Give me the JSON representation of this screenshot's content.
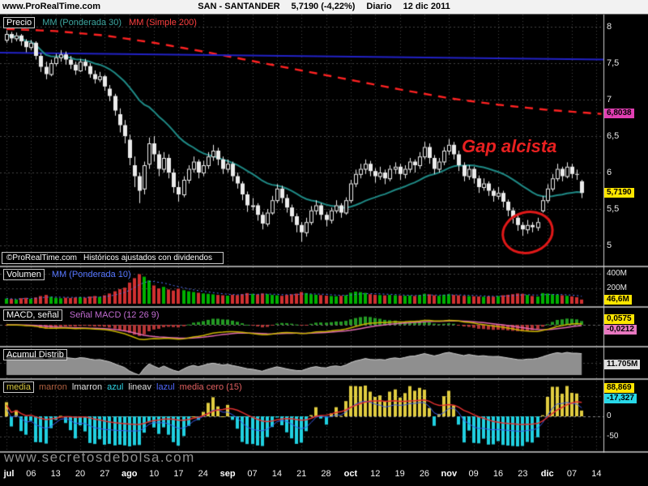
{
  "header": {
    "site": "www.ProRealTime.com",
    "symbol": "SAN - SANTANDER",
    "quote": "5,7190 (-4,22%)",
    "timeframe": "Diario",
    "date": "12 dic 2011"
  },
  "watermark": "www.secretosdebolsa.com",
  "colors": {
    "accent_yellow": "#ffe600",
    "magenta_label": "#e23fb4",
    "cyan_label": "#28d8e8",
    "up_volume_green": "#00b000",
    "down_volume_red": "#d03030",
    "mm30_teal": "#1f8a86",
    "mm200_red": "#ff2222",
    "trendline_blue": "#2222c8",
    "annotation_red": "#e82020"
  },
  "panels": {
    "price": {
      "name": "Precio",
      "ma_fast_label": "MM (Ponderada 30)",
      "ma_slow_label": "MM (Simple 200)",
      "copyright_site": "©ProRealTime.com",
      "copyright_note": "Históricos ajustados con dividendos",
      "annotation": "Gap alcista",
      "y_ticks": [
        {
          "label": "8",
          "value": 8
        },
        {
          "label": "7,5",
          "value": 7.5
        },
        {
          "label": "7",
          "value": 7
        },
        {
          "label": "6,5",
          "value": 6.5
        },
        {
          "label": "6",
          "value": 6
        },
        {
          "label": "5,5",
          "value": 5.5
        },
        {
          "label": "5",
          "value": 5
        }
      ],
      "last_price_label": "5,7190",
      "ma200_value_label": "6,8038"
    },
    "volume": {
      "name": "Volumen",
      "ma_label": "MM (Ponderada 10)",
      "y_ticks": [
        {
          "label": "400M",
          "value": 400
        },
        {
          "label": "200M",
          "value": 200
        }
      ],
      "value_label": "46,6M"
    },
    "macd": {
      "name": "MACD, señal",
      "series_label": "Señal MACD (12 26 9)",
      "value_label_macd": "0,0575",
      "value_label_signal": "-0,0212"
    },
    "accdist": {
      "name": "Acumul Distrib",
      "value_label": "11.705M"
    },
    "oscillator": {
      "legend_tokens": [
        {
          "text": "media",
          "color": "#d8c840",
          "boxed": true
        },
        {
          "text": "marron",
          "color": "#b06040"
        },
        {
          "text": "lmarron",
          "color": "#e0e0e0"
        },
        {
          "text": "azul",
          "color": "#30d8e8"
        },
        {
          "text": "lineav",
          "color": "#e0e0e0"
        },
        {
          "text": "lazul",
          "color": "#5068ff"
        },
        {
          "text": "media cero (15)",
          "color": "#e06060"
        }
      ],
      "y_ticks": [
        {
          "label": "0",
          "value": 0
        },
        {
          "label": "-50",
          "value": -50
        }
      ],
      "value_label_high": "88,869",
      "value_label_low": "-17,327"
    }
  },
  "xaxis": {
    "ticks": [
      {
        "i": 0,
        "label": "jul",
        "bold": true
      },
      {
        "i": 5,
        "label": "06"
      },
      {
        "i": 10,
        "label": "13"
      },
      {
        "i": 15,
        "label": "20"
      },
      {
        "i": 20,
        "label": "27"
      },
      {
        "i": 25,
        "label": "ago",
        "bold": true
      },
      {
        "i": 30,
        "label": "10"
      },
      {
        "i": 35,
        "label": "17"
      },
      {
        "i": 40,
        "label": "24"
      },
      {
        "i": 45,
        "label": "sep",
        "bold": true
      },
      {
        "i": 50,
        "label": "07"
      },
      {
        "i": 55,
        "label": "14"
      },
      {
        "i": 60,
        "label": "21"
      },
      {
        "i": 65,
        "label": "28"
      },
      {
        "i": 70,
        "label": "oct",
        "bold": true
      },
      {
        "i": 75,
        "label": "12"
      },
      {
        "i": 80,
        "label": "19"
      },
      {
        "i": 85,
        "label": "26"
      },
      {
        "i": 90,
        "label": "nov",
        "bold": true
      },
      {
        "i": 95,
        "label": "09"
      },
      {
        "i": 100,
        "label": "16"
      },
      {
        "i": 105,
        "label": "23"
      },
      {
        "i": 110,
        "label": "dic",
        "bold": true
      },
      {
        "i": 115,
        "label": "07"
      },
      {
        "i": 120,
        "label": "14"
      }
    ]
  },
  "chart_data": {
    "type": "candlestick",
    "symbol": "SAN - SANTANDER",
    "timeframe": "Diario",
    "last_date": "12 dic 2011",
    "last_price": 5.719,
    "change_pct": -4.22,
    "price_ylim": [
      5,
      8
    ],
    "volume_ylim_millions": [
      0,
      400
    ],
    "indicators": {
      "price_ma_fast": "MM Ponderada 30",
      "price_ma_slow": "MM Simple 200",
      "ma200_last_value": 6.8038,
      "volume_ma": "MM Ponderada 10",
      "volume_last_millions": 46.6,
      "macd_params": [
        12,
        26,
        9
      ],
      "macd_last": 0.0575,
      "accdist_last": "11.705M",
      "oscillator_period": 15,
      "oscillator_values": [
        88.869,
        -17.327
      ]
    },
    "mm200_keypoints": [
      [
        0,
        7.97
      ],
      [
        10,
        7.94
      ],
      [
        20,
        7.88
      ],
      [
        30,
        7.78
      ],
      [
        40,
        7.66
      ],
      [
        50,
        7.53
      ],
      [
        60,
        7.4
      ],
      [
        70,
        7.27
      ],
      [
        80,
        7.14
      ],
      [
        90,
        7.02
      ],
      [
        100,
        6.93
      ],
      [
        110,
        6.86
      ],
      [
        121,
        6.8038
      ]
    ],
    "trendline": {
      "from_day": 0,
      "from_price": 7.645,
      "to_day": 121,
      "to_price": 7.55
    },
    "circle_annotation": {
      "day": 106,
      "price": 5.25,
      "note": "minimos rodeados antes del gap"
    },
    "candles_ohlc": [
      [
        7.82,
        7.95,
        7.78,
        7.9
      ],
      [
        7.9,
        7.93,
        7.78,
        7.84
      ],
      [
        7.84,
        7.92,
        7.8,
        7.88
      ],
      [
        7.88,
        7.9,
        7.74,
        7.8
      ],
      [
        7.8,
        7.83,
        7.65,
        7.72
      ],
      [
        7.72,
        7.82,
        7.68,
        7.78
      ],
      [
        7.78,
        7.8,
        7.55,
        7.6
      ],
      [
        7.6,
        7.64,
        7.38,
        7.45
      ],
      [
        7.45,
        7.52,
        7.28,
        7.35
      ],
      [
        7.35,
        7.55,
        7.32,
        7.5
      ],
      [
        7.5,
        7.63,
        7.46,
        7.58
      ],
      [
        7.58,
        7.68,
        7.52,
        7.62
      ],
      [
        7.62,
        7.66,
        7.48,
        7.55
      ],
      [
        7.55,
        7.6,
        7.42,
        7.48
      ],
      [
        7.48,
        7.52,
        7.34,
        7.4
      ],
      [
        7.4,
        7.56,
        7.38,
        7.52
      ],
      [
        7.52,
        7.56,
        7.4,
        7.46
      ],
      [
        7.46,
        7.5,
        7.3,
        7.35
      ],
      [
        7.35,
        7.4,
        7.22,
        7.28
      ],
      [
        7.28,
        7.38,
        7.24,
        7.32
      ],
      [
        7.32,
        7.34,
        7.12,
        7.18
      ],
      [
        7.15,
        7.2,
        6.98,
        7.05
      ],
      [
        7.05,
        7.08,
        6.78,
        6.85
      ],
      [
        6.8,
        6.88,
        6.55,
        6.65
      ],
      [
        6.65,
        6.72,
        6.4,
        6.5
      ],
      [
        6.45,
        6.52,
        6.1,
        6.2
      ],
      [
        6.1,
        6.22,
        5.8,
        5.95
      ],
      [
        5.95,
        6.0,
        5.58,
        5.75
      ],
      [
        5.78,
        6.15,
        5.7,
        6.1
      ],
      [
        6.12,
        6.48,
        6.05,
        6.4
      ],
      [
        6.4,
        6.5,
        6.15,
        6.25
      ],
      [
        6.25,
        6.3,
        5.95,
        6.05
      ],
      [
        6.05,
        6.28,
        6.0,
        6.2
      ],
      [
        6.2,
        6.25,
        5.92,
        6.0
      ],
      [
        6.0,
        6.05,
        5.72,
        5.8
      ],
      [
        5.8,
        5.88,
        5.6,
        5.7
      ],
      [
        5.7,
        5.95,
        5.66,
        5.9
      ],
      [
        5.9,
        6.1,
        5.85,
        6.05
      ],
      [
        6.05,
        6.22,
        6.0,
        6.15
      ],
      [
        6.15,
        6.18,
        5.92,
        6.0
      ],
      [
        6.0,
        6.16,
        5.95,
        6.1
      ],
      [
        6.1,
        6.28,
        6.05,
        6.22
      ],
      [
        6.22,
        6.38,
        6.16,
        6.3
      ],
      [
        6.3,
        6.34,
        6.1,
        6.18
      ],
      [
        6.18,
        6.22,
        5.98,
        6.05
      ],
      [
        6.05,
        6.18,
        6.0,
        6.12
      ],
      [
        6.12,
        6.15,
        5.88,
        5.95
      ],
      [
        5.95,
        6.0,
        5.78,
        5.85
      ],
      [
        5.85,
        5.88,
        5.62,
        5.7
      ],
      [
        5.7,
        5.74,
        5.46,
        5.55
      ],
      [
        5.55,
        5.65,
        5.48,
        5.55
      ],
      [
        5.55,
        5.58,
        5.34,
        5.42
      ],
      [
        5.42,
        5.46,
        5.22,
        5.3
      ],
      [
        5.3,
        5.5,
        5.26,
        5.45
      ],
      [
        5.45,
        5.68,
        5.42,
        5.62
      ],
      [
        5.62,
        5.84,
        5.58,
        5.78
      ],
      [
        5.78,
        5.82,
        5.58,
        5.65
      ],
      [
        5.65,
        5.7,
        5.45,
        5.52
      ],
      [
        5.52,
        5.56,
        5.32,
        5.4
      ],
      [
        5.4,
        5.44,
        5.18,
        5.28
      ],
      [
        5.28,
        5.32,
        5.05,
        5.18
      ],
      [
        5.18,
        5.38,
        5.12,
        5.32
      ],
      [
        5.32,
        5.54,
        5.28,
        5.48
      ],
      [
        5.48,
        5.62,
        5.42,
        5.55
      ],
      [
        5.55,
        5.58,
        5.35,
        5.42
      ],
      [
        5.42,
        5.46,
        5.26,
        5.35
      ],
      [
        5.35,
        5.52,
        5.3,
        5.48
      ],
      [
        5.48,
        5.62,
        5.44,
        5.55
      ],
      [
        5.55,
        5.58,
        5.38,
        5.45
      ],
      [
        5.45,
        5.66,
        5.42,
        5.62
      ],
      [
        5.62,
        5.9,
        5.58,
        5.85
      ],
      [
        5.85,
        6.04,
        5.8,
        5.98
      ],
      [
        5.98,
        6.12,
        5.92,
        6.05
      ],
      [
        6.05,
        6.18,
        5.98,
        6.12
      ],
      [
        6.12,
        6.16,
        5.95,
        6.02
      ],
      [
        6.02,
        6.06,
        5.86,
        5.95
      ],
      [
        5.95,
        6.08,
        5.9,
        6.0
      ],
      [
        6.0,
        6.04,
        5.84,
        5.92
      ],
      [
        5.92,
        6.1,
        5.88,
        6.05
      ],
      [
        6.05,
        6.14,
        5.98,
        6.08
      ],
      [
        6.08,
        6.12,
        5.9,
        5.98
      ],
      [
        5.98,
        6.1,
        5.92,
        6.05
      ],
      [
        6.05,
        6.2,
        6.0,
        6.15
      ],
      [
        6.15,
        6.18,
        6.0,
        6.1
      ],
      [
        6.1,
        6.28,
        6.05,
        6.22
      ],
      [
        6.22,
        6.42,
        6.18,
        6.35
      ],
      [
        6.35,
        6.4,
        6.12,
        6.2
      ],
      [
        6.2,
        6.24,
        5.98,
        6.05
      ],
      [
        6.05,
        6.2,
        6.0,
        6.15
      ],
      [
        6.15,
        6.35,
        6.1,
        6.3
      ],
      [
        6.3,
        6.46,
        6.24,
        6.38
      ],
      [
        6.38,
        6.42,
        6.18,
        6.25
      ],
      [
        6.25,
        6.3,
        6.02,
        6.1
      ],
      [
        6.1,
        6.14,
        5.88,
        5.95
      ],
      [
        5.95,
        6.1,
        5.9,
        6.05
      ],
      [
        6.05,
        6.08,
        5.85,
        5.92
      ],
      [
        5.92,
        5.96,
        5.72,
        5.8
      ],
      [
        5.8,
        5.92,
        5.75,
        5.85
      ],
      [
        5.85,
        5.88,
        5.68,
        5.75
      ],
      [
        5.75,
        5.78,
        5.6,
        5.68
      ],
      [
        5.68,
        5.8,
        5.63,
        5.72
      ],
      [
        5.72,
        5.75,
        5.52,
        5.6
      ],
      [
        5.6,
        5.63,
        5.4,
        5.48
      ],
      [
        5.48,
        5.52,
        5.3,
        5.38
      ],
      [
        5.38,
        5.42,
        5.2,
        5.28
      ],
      [
        5.28,
        5.32,
        5.13,
        5.22
      ],
      [
        5.22,
        5.35,
        5.16,
        5.28
      ],
      [
        5.28,
        5.32,
        5.18,
        5.25
      ],
      [
        5.25,
        5.38,
        5.2,
        5.32
      ],
      [
        5.48,
        5.68,
        5.45,
        5.62
      ],
      [
        5.62,
        5.84,
        5.58,
        5.78
      ],
      [
        5.78,
        5.98,
        5.74,
        5.92
      ],
      [
        5.92,
        6.12,
        5.88,
        6.05
      ],
      [
        6.05,
        6.08,
        5.88,
        5.95
      ],
      [
        5.95,
        6.14,
        5.92,
        6.08
      ],
      [
        6.08,
        6.12,
        5.92,
        5.98
      ],
      [
        5.98,
        6.04,
        5.9,
        5.97
      ],
      [
        5.88,
        5.9,
        5.65,
        5.72
      ]
    ],
    "volumes_millions": [
      60,
      55,
      48,
      65,
      70,
      58,
      75,
      95,
      110,
      85,
      70,
      64,
      72,
      68,
      75,
      80,
      72,
      88,
      95,
      84,
      105,
      130,
      160,
      190,
      210,
      280,
      340,
      395,
      360,
      310,
      240,
      200,
      220,
      185,
      170,
      195,
      175,
      160,
      150,
      140,
      130,
      125,
      118,
      110,
      105,
      100,
      112,
      108,
      120,
      135,
      125,
      118,
      130,
      122,
      110,
      105,
      98,
      110,
      118,
      128,
      150,
      135,
      120,
      112,
      108,
      100,
      95,
      92,
      98,
      105,
      140,
      155,
      148,
      138,
      120,
      112,
      108,
      104,
      110,
      106,
      100,
      98,
      102,
      96,
      108,
      125,
      118,
      105,
      98,
      112,
      120,
      110,
      105,
      98,
      95,
      92,
      88,
      85,
      90,
      86,
      95,
      105,
      112,
      120,
      130,
      125,
      110,
      95,
      88,
      135,
      128,
      120,
      115,
      105,
      98,
      90,
      78,
      46.6
    ]
  }
}
